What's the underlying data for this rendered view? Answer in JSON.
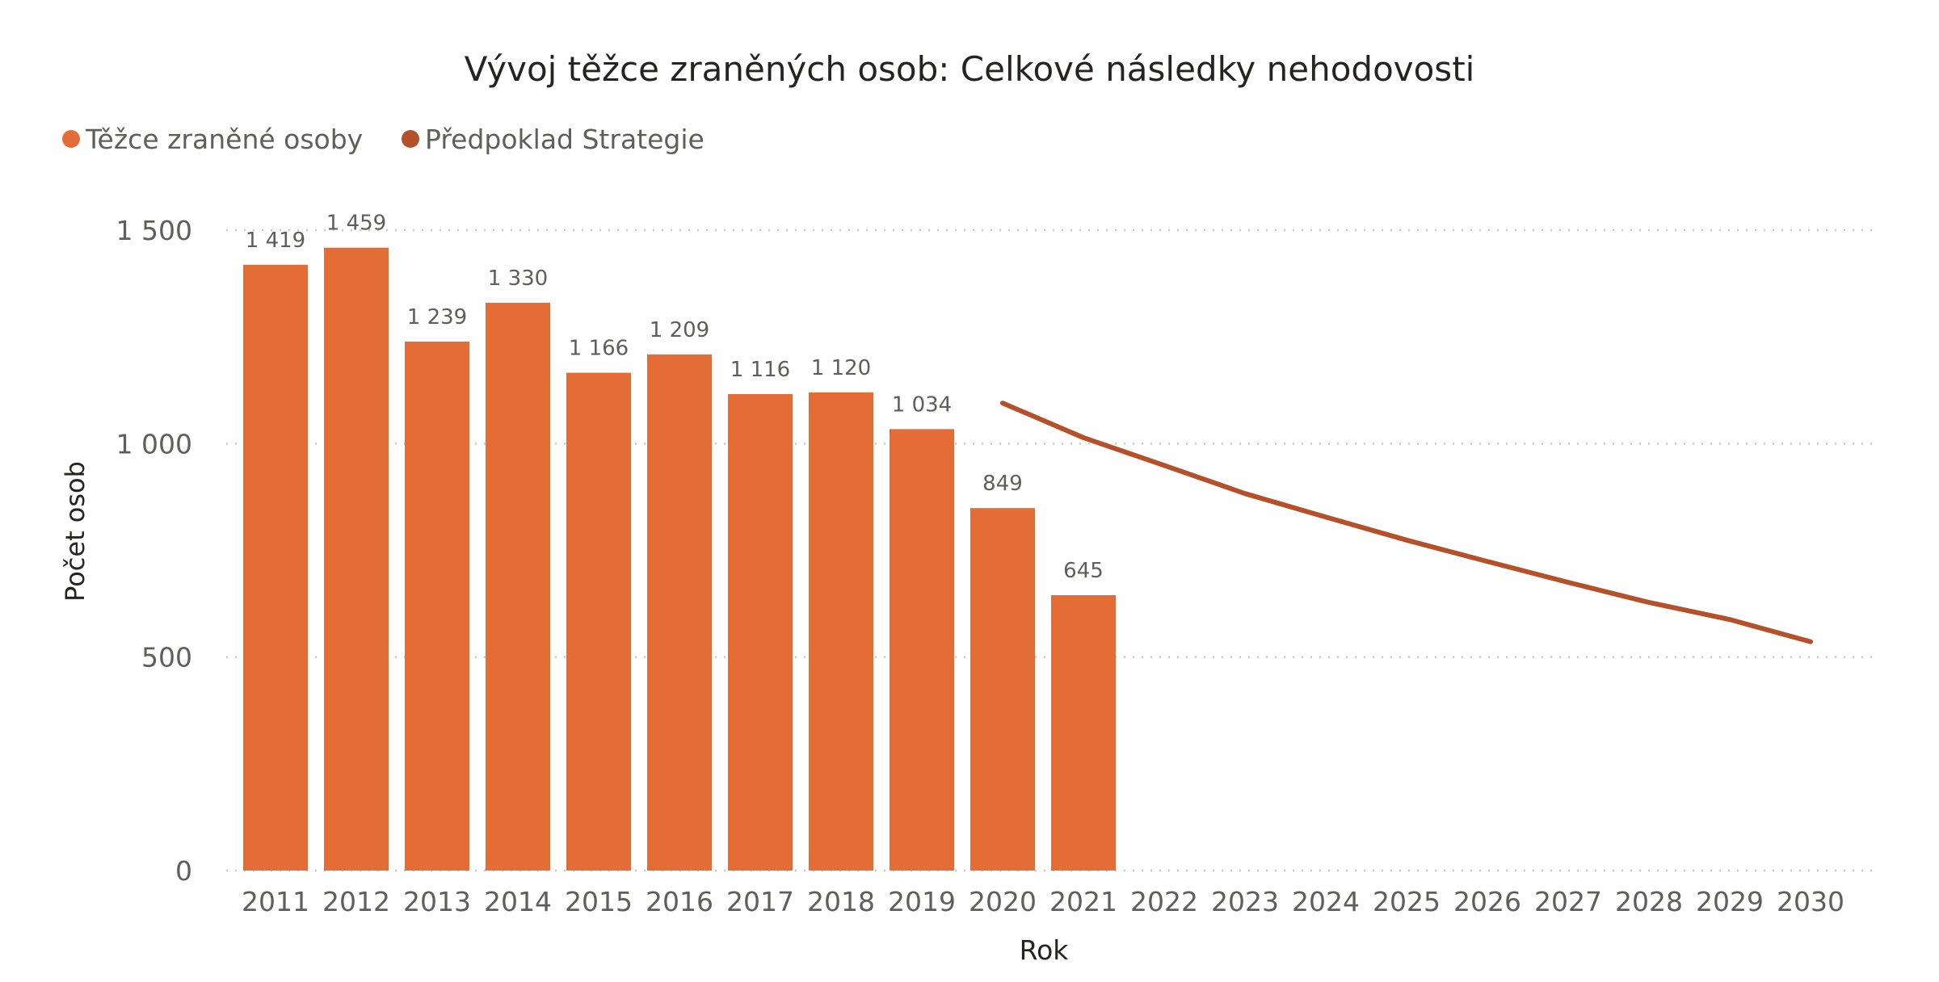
{
  "chart_data": {
    "type": "bar",
    "title": "Vývoj těžce zraněných osob: Celkové následky nehodovosti",
    "xlabel": "Rok",
    "ylabel": "Počet osob",
    "ylim": [
      0,
      1500
    ],
    "yticks": [
      0,
      500,
      1000,
      1500
    ],
    "ytick_labels": [
      "0",
      "500",
      "1 000",
      "1 500"
    ],
    "grid": true,
    "legend_position": "top-left",
    "categories": [
      "2011",
      "2012",
      "2013",
      "2014",
      "2015",
      "2016",
      "2017",
      "2018",
      "2019",
      "2020",
      "2021",
      "2022",
      "2023",
      "2024",
      "2025",
      "2026",
      "2027",
      "2028",
      "2029",
      "2030"
    ],
    "series": [
      {
        "name": "Těžce zraněné osoby",
        "type": "bar",
        "color": "#E46C37",
        "values": [
          1419,
          1459,
          1239,
          1330,
          1166,
          1209,
          1116,
          1120,
          1034,
          849,
          645,
          null,
          null,
          null,
          null,
          null,
          null,
          null,
          null,
          null
        ],
        "data_labels": [
          "1 419",
          "1 459",
          "1 239",
          "1 330",
          "1 166",
          "1 209",
          "1 116",
          "1 120",
          "1 034",
          "849",
          "645"
        ]
      },
      {
        "name": "Předpoklad Strategie",
        "type": "line",
        "color": "#B4502A",
        "values": [
          null,
          null,
          null,
          null,
          null,
          null,
          null,
          null,
          null,
          1095,
          1014,
          949,
          883,
          828,
          774,
          724,
          675,
          628,
          588,
          536
        ]
      }
    ]
  }
}
